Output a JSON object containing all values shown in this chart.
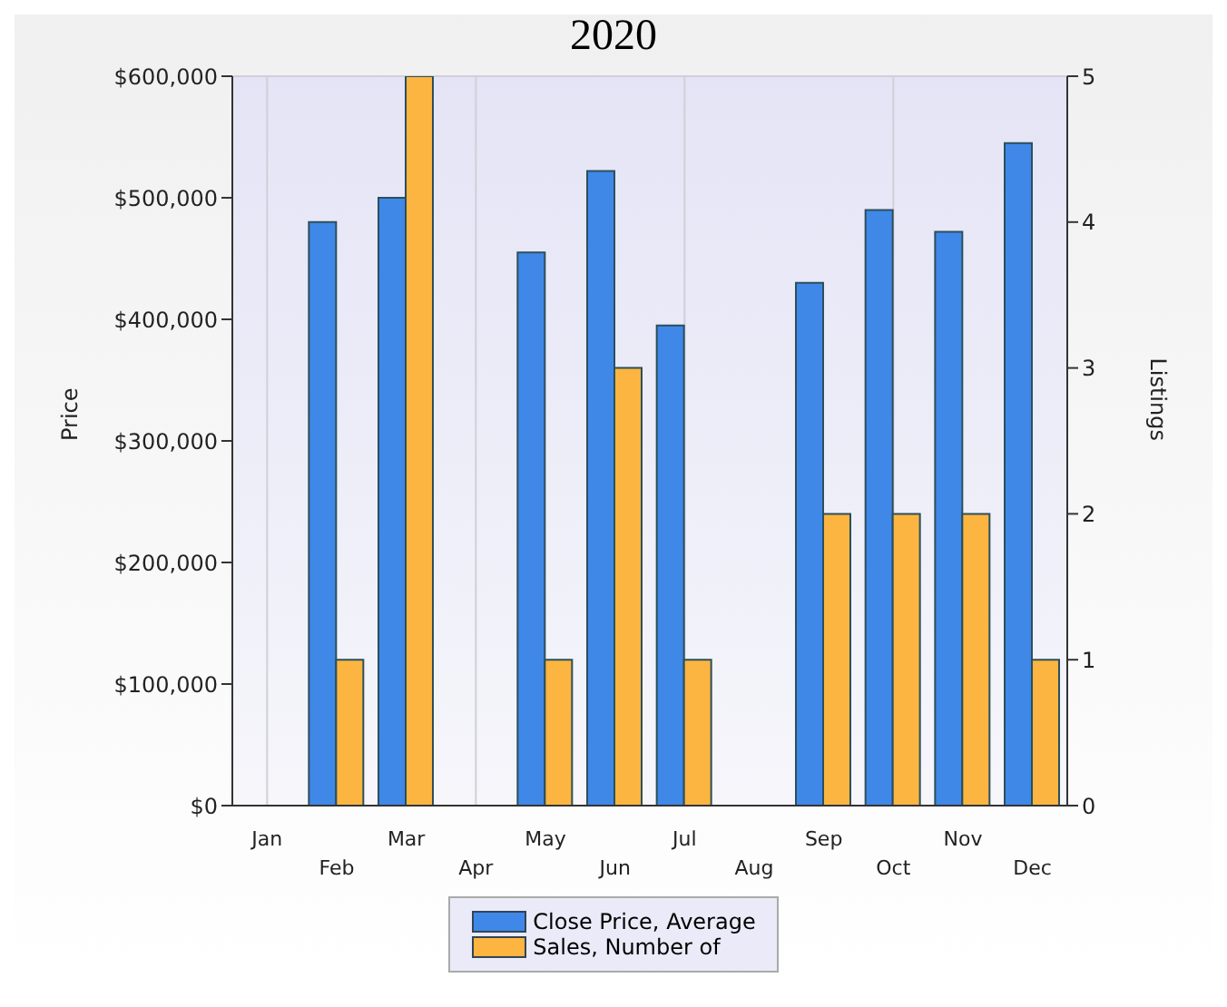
{
  "chart_data": {
    "type": "bar",
    "title": "2020",
    "ylabel": "Price",
    "y2label": "Listings",
    "categories": [
      "Jan",
      "Feb",
      "Mar",
      "Apr",
      "May",
      "Jun",
      "Jul",
      "Aug",
      "Sep",
      "Oct",
      "Nov",
      "Dec"
    ],
    "series": [
      {
        "name": "Close Price, Average",
        "color": "#3f88e8",
        "values": [
          null,
          480000,
          500000,
          null,
          455000,
          522000,
          395000,
          null,
          430000,
          490000,
          472000,
          545000
        ]
      },
      {
        "name": "Sales, Number of",
        "color": "#fbb540",
        "axis": "y2",
        "values": [
          null,
          1,
          5,
          null,
          1,
          3,
          1,
          null,
          2,
          2,
          2,
          1
        ]
      }
    ],
    "ylim": [
      0,
      600000
    ],
    "yticks": [
      {
        "value": 0,
        "label": "$0"
      },
      {
        "value": 100000,
        "label": "$100,000"
      },
      {
        "value": 200000,
        "label": "$200,000"
      },
      {
        "value": 300000,
        "label": "$300,000"
      },
      {
        "value": 400000,
        "label": "$400,000"
      },
      {
        "value": 500000,
        "label": "$500,000"
      },
      {
        "value": 600000,
        "label": "$600,000"
      }
    ],
    "y2lim": [
      0,
      5
    ],
    "y2ticks": [
      0,
      1,
      2,
      3,
      4,
      5
    ],
    "grid": true,
    "legend": "bottom"
  }
}
